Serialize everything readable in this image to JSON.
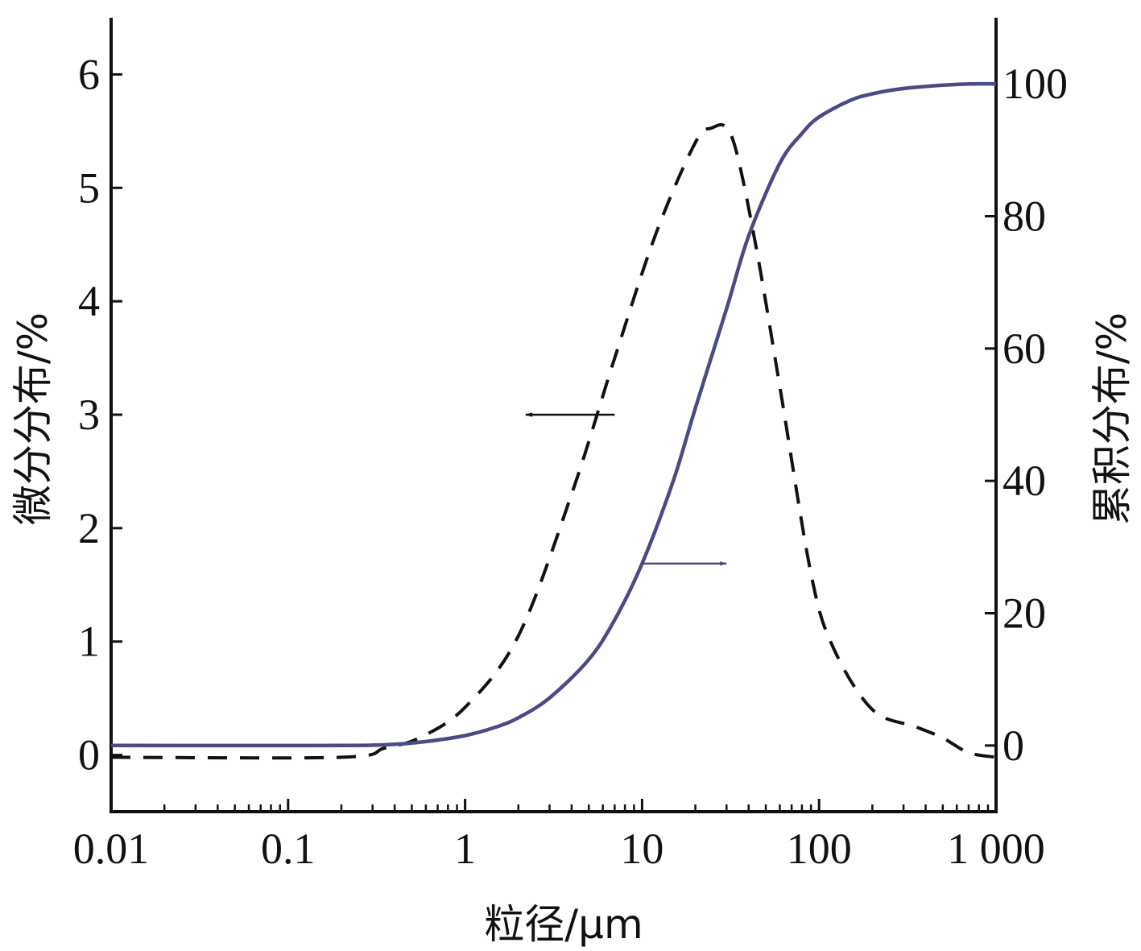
{
  "chart_data": {
    "type": "line",
    "title": "",
    "xlabel": "粒径/μm",
    "ylabel_left": "微分分布/%",
    "ylabel_right": "累积分布/%",
    "x_scale": "log",
    "xlim": [
      0.01,
      1000
    ],
    "ylim_left": [
      -0.5,
      6.5
    ],
    "ylim_right": [
      -10,
      110
    ],
    "grid": false,
    "legend": "none",
    "x_ticks": [
      {
        "value": 0.01,
        "label": "0.01"
      },
      {
        "value": 0.1,
        "label": "0.1"
      },
      {
        "value": 1,
        "label": "1"
      },
      {
        "value": 10,
        "label": "10"
      },
      {
        "value": 100,
        "label": "100"
      },
      {
        "value": 1000,
        "label": "1 000"
      }
    ],
    "y_ticks_left": [
      {
        "value": 0,
        "label": "0"
      },
      {
        "value": 1,
        "label": "1"
      },
      {
        "value": 2,
        "label": "2"
      },
      {
        "value": 3,
        "label": "3"
      },
      {
        "value": 4,
        "label": "4"
      },
      {
        "value": 5,
        "label": "5"
      },
      {
        "value": 6,
        "label": "6"
      }
    ],
    "y_ticks_right": [
      {
        "value": 0,
        "label": "0"
      },
      {
        "value": 20,
        "label": "20"
      },
      {
        "value": 40,
        "label": "40"
      },
      {
        "value": 60,
        "label": "60"
      },
      {
        "value": 80,
        "label": "80"
      },
      {
        "value": 100,
        "label": "100"
      }
    ],
    "series": [
      {
        "axis": "left",
        "style": "dashed",
        "color": "#111111",
        "x": [
          0.01,
          0.2,
          0.35,
          0.55,
          1,
          2,
          4,
          7,
          12,
          20,
          25,
          30,
          35,
          45,
          60,
          90,
          120,
          200,
          350,
          500,
          700,
          1000
        ],
        "y": [
          -0.02,
          -0.02,
          0.06,
          0.15,
          0.42,
          1.05,
          2.3,
          3.5,
          4.6,
          5.4,
          5.53,
          5.53,
          5.25,
          4.4,
          3.25,
          1.6,
          0.95,
          0.4,
          0.25,
          0.15,
          0.02,
          -0.02
        ]
      },
      {
        "axis": "right",
        "style": "solid",
        "color": "#4a4a86",
        "x": [
          0.01,
          0.2,
          0.4,
          0.6,
          1,
          1.5,
          2,
          3,
          5,
          7,
          10,
          15,
          20,
          30,
          40,
          60,
          80,
          100,
          150,
          200,
          300,
          500,
          700,
          1000
        ],
        "y": [
          0,
          0,
          0.2,
          0.6,
          1.5,
          2.8,
          4.2,
          7.2,
          13,
          19,
          27.5,
          40,
          51,
          66,
          77,
          88,
          92.5,
          95,
          97.5,
          98.5,
          99.3,
          99.8,
          100,
          100
        ]
      }
    ],
    "annotations": [
      {
        "type": "arrow",
        "points_to": "left-axis",
        "at_x": 7,
        "at_y_left": 3.0,
        "to_x": 2.2
      },
      {
        "type": "arrow",
        "points_to": "right-axis",
        "at_x": 10,
        "at_y_right": 27.5,
        "to_x": 30
      }
    ]
  }
}
